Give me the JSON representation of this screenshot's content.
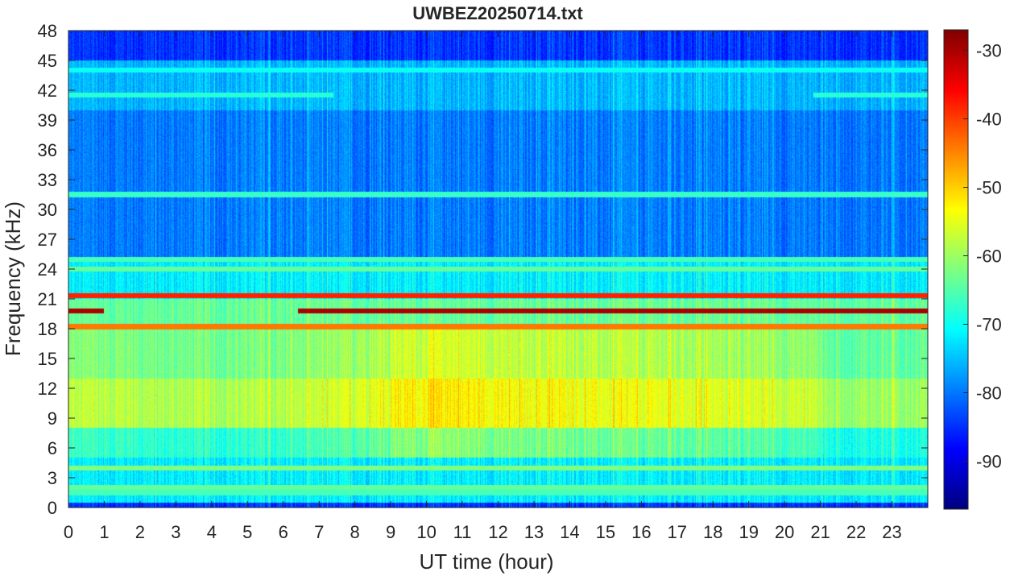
{
  "chart_data": {
    "type": "heatmap",
    "title": "UWBEZ20250714.txt",
    "xlabel": "UT time (hour)",
    "ylabel": "Frequency (kHz)",
    "xlim": [
      0,
      24
    ],
    "ylim": [
      0,
      48
    ],
    "x_ticks": [
      0,
      1,
      2,
      3,
      4,
      5,
      6,
      7,
      8,
      9,
      10,
      11,
      12,
      13,
      14,
      15,
      16,
      17,
      18,
      19,
      20,
      21,
      22,
      23
    ],
    "y_ticks": [
      0,
      3,
      6,
      9,
      12,
      15,
      18,
      21,
      24,
      27,
      30,
      33,
      36,
      39,
      42,
      45,
      48
    ],
    "colorbar": {
      "colormap": "jet",
      "range": [
        -97,
        -27
      ],
      "ticks": [
        -30,
        -40,
        -50,
        -60,
        -70,
        -80,
        -90
      ]
    },
    "background_levels_dB": [
      {
        "freq_range_kHz": [
          0,
          0.5
        ],
        "level": -85
      },
      {
        "freq_range_kHz": [
          0.5,
          5
        ],
        "level": -72
      },
      {
        "freq_range_kHz": [
          5,
          8
        ],
        "level": -66
      },
      {
        "freq_range_kHz": [
          8,
          13
        ],
        "level": -57
      },
      {
        "freq_range_kHz": [
          13,
          18
        ],
        "level": -61
      },
      {
        "freq_range_kHz": [
          18,
          21
        ],
        "level": -64
      },
      {
        "freq_range_kHz": [
          21,
          25
        ],
        "level": -72
      },
      {
        "freq_range_kHz": [
          25,
          40
        ],
        "level": -80
      },
      {
        "freq_range_kHz": [
          40,
          45
        ],
        "level": -76
      },
      {
        "freq_range_kHz": [
          45,
          48
        ],
        "level": -85
      }
    ],
    "narrowband_lines": [
      {
        "freq_kHz": 21.3,
        "level": -38,
        "time_hours": [
          0,
          24
        ]
      },
      {
        "freq_kHz": 19.8,
        "level": -30,
        "time_hours": [
          0,
          1
        ]
      },
      {
        "freq_kHz": 19.8,
        "level": -30,
        "time_hours": [
          6.4,
          24
        ]
      },
      {
        "freq_kHz": 18.2,
        "level": -44,
        "time_hours": [
          0,
          24
        ]
      },
      {
        "freq_kHz": 24.0,
        "level": -64,
        "time_hours": [
          0,
          24
        ]
      },
      {
        "freq_kHz": 25.0,
        "level": -66,
        "time_hours": [
          0,
          24
        ]
      },
      {
        "freq_kHz": 31.5,
        "level": -67,
        "time_hours": [
          0,
          24
        ]
      },
      {
        "freq_kHz": 41.5,
        "level": -68,
        "time_hours": [
          0,
          7.4
        ]
      },
      {
        "freq_kHz": 41.5,
        "level": -68,
        "time_hours": [
          20.8,
          24
        ]
      },
      {
        "freq_kHz": 44.0,
        "level": -70,
        "time_hours": [
          0,
          24
        ]
      },
      {
        "freq_kHz": 4.0,
        "level": -62,
        "time_hours": [
          0,
          24
        ]
      },
      {
        "freq_kHz": 2.0,
        "level": -64,
        "time_hours": [
          0,
          24
        ]
      },
      {
        "freq_kHz": 1.5,
        "level": -66,
        "time_hours": [
          0,
          24
        ]
      }
    ],
    "activity_by_hour": [
      0.5,
      0.5,
      0.4,
      0.4,
      0.4,
      0.4,
      0.5,
      0.6,
      0.8,
      1.0,
      1.1,
      1.0,
      0.9,
      0.9,
      0.85,
      0.8,
      0.8,
      0.75,
      0.7,
      0.65,
      0.6,
      0.3,
      0.3,
      0.3
    ]
  }
}
